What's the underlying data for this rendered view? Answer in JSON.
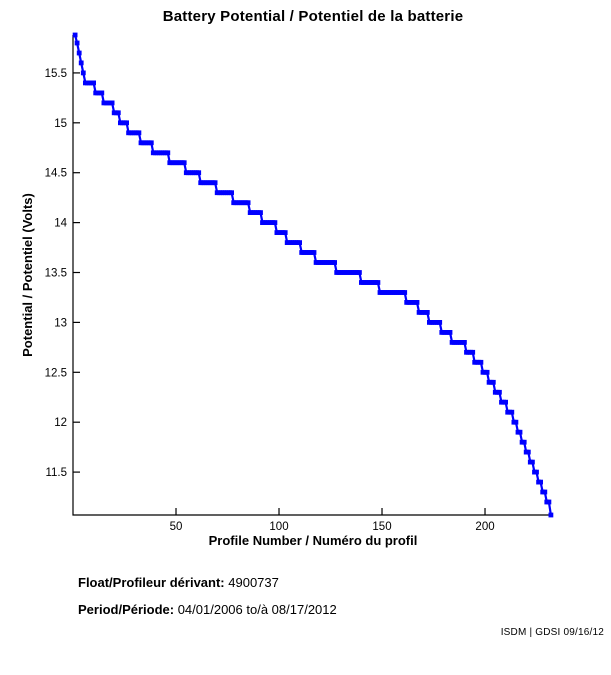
{
  "page": {
    "background": "#ffffff",
    "text_color": "#000000"
  },
  "chart_data": {
    "type": "line",
    "title": "Battery Potential / Potentiel de la batterie",
    "xlabel": "Profile Number / Numéro du profil",
    "ylabel": "Potential / Potentiel (Volts)",
    "series_name": "battery-potential-vs-profile",
    "line_color": "#0000FF",
    "marker": "square",
    "grid": false,
    "legend": "none",
    "xlim": [
      0,
      233
    ],
    "ylim": [
      11.07,
      15.88
    ],
    "xticks": [
      50,
      100,
      150,
      200
    ],
    "yticks": [
      11.5,
      12,
      12.5,
      13,
      13.5,
      14,
      14.5,
      15,
      15.5
    ],
    "steps_format": [
      "profile_start",
      "profile_end",
      "volts"
    ],
    "steps": [
      [
        1,
        1,
        15.88
      ],
      [
        2,
        2,
        15.8
      ],
      [
        3,
        3,
        15.7
      ],
      [
        4,
        4,
        15.6
      ],
      [
        5,
        5,
        15.5
      ],
      [
        6,
        10,
        15.4
      ],
      [
        11,
        14,
        15.3
      ],
      [
        15,
        19,
        15.2
      ],
      [
        20,
        22,
        15.1
      ],
      [
        23,
        26,
        15.0
      ],
      [
        27,
        32,
        14.9
      ],
      [
        33,
        38,
        14.8
      ],
      [
        39,
        46,
        14.7
      ],
      [
        47,
        54,
        14.6
      ],
      [
        55,
        61,
        14.5
      ],
      [
        62,
        69,
        14.4
      ],
      [
        70,
        77,
        14.3
      ],
      [
        78,
        85,
        14.2
      ],
      [
        86,
        91,
        14.1
      ],
      [
        92,
        98,
        14.0
      ],
      [
        99,
        103,
        13.9
      ],
      [
        104,
        110,
        13.8
      ],
      [
        111,
        117,
        13.7
      ],
      [
        118,
        127,
        13.6
      ],
      [
        128,
        139,
        13.5
      ],
      [
        140,
        148,
        13.4
      ],
      [
        149,
        161,
        13.3
      ],
      [
        162,
        167,
        13.2
      ],
      [
        168,
        172,
        13.1
      ],
      [
        173,
        178,
        13.0
      ],
      [
        179,
        183,
        12.9
      ],
      [
        184,
        190,
        12.8
      ],
      [
        191,
        194,
        12.7
      ],
      [
        195,
        198,
        12.6
      ],
      [
        199,
        201,
        12.5
      ],
      [
        202,
        204,
        12.4
      ],
      [
        205,
        207,
        12.3
      ],
      [
        208,
        210,
        12.2
      ],
      [
        211,
        213,
        12.1
      ],
      [
        214,
        215,
        12.0
      ],
      [
        216,
        217,
        11.9
      ],
      [
        218,
        219,
        11.8
      ],
      [
        220,
        221,
        11.7
      ],
      [
        222,
        223,
        11.6
      ],
      [
        224,
        225,
        11.5
      ],
      [
        226,
        227,
        11.4
      ],
      [
        228,
        229,
        11.3
      ],
      [
        230,
        231,
        11.2
      ],
      [
        232,
        232,
        11.07
      ]
    ]
  },
  "info": {
    "float_label": "Float/Profileur dérivant:",
    "float_value": "4900737",
    "period_label": "Period/Période:",
    "period_value": "04/01/2006 to/à 08/17/2012"
  },
  "footer": {
    "credit": "ISDM | GDSI 09/16/12"
  }
}
